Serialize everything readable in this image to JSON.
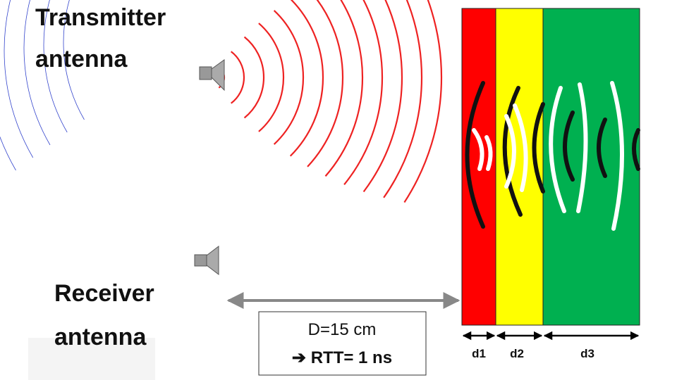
{
  "transmitter_label": {
    "line1": "Transmitter",
    "line2": "antenna"
  },
  "receiver_label": {
    "line1": "Receiver",
    "line2": "antenna"
  },
  "distance_box": {
    "distance": "D=15 cm",
    "rtt": "➔ RTT= 1 ns"
  },
  "layers": [
    {
      "label": "d1"
    },
    {
      "label": "d2"
    },
    {
      "label": "d3"
    }
  ]
}
